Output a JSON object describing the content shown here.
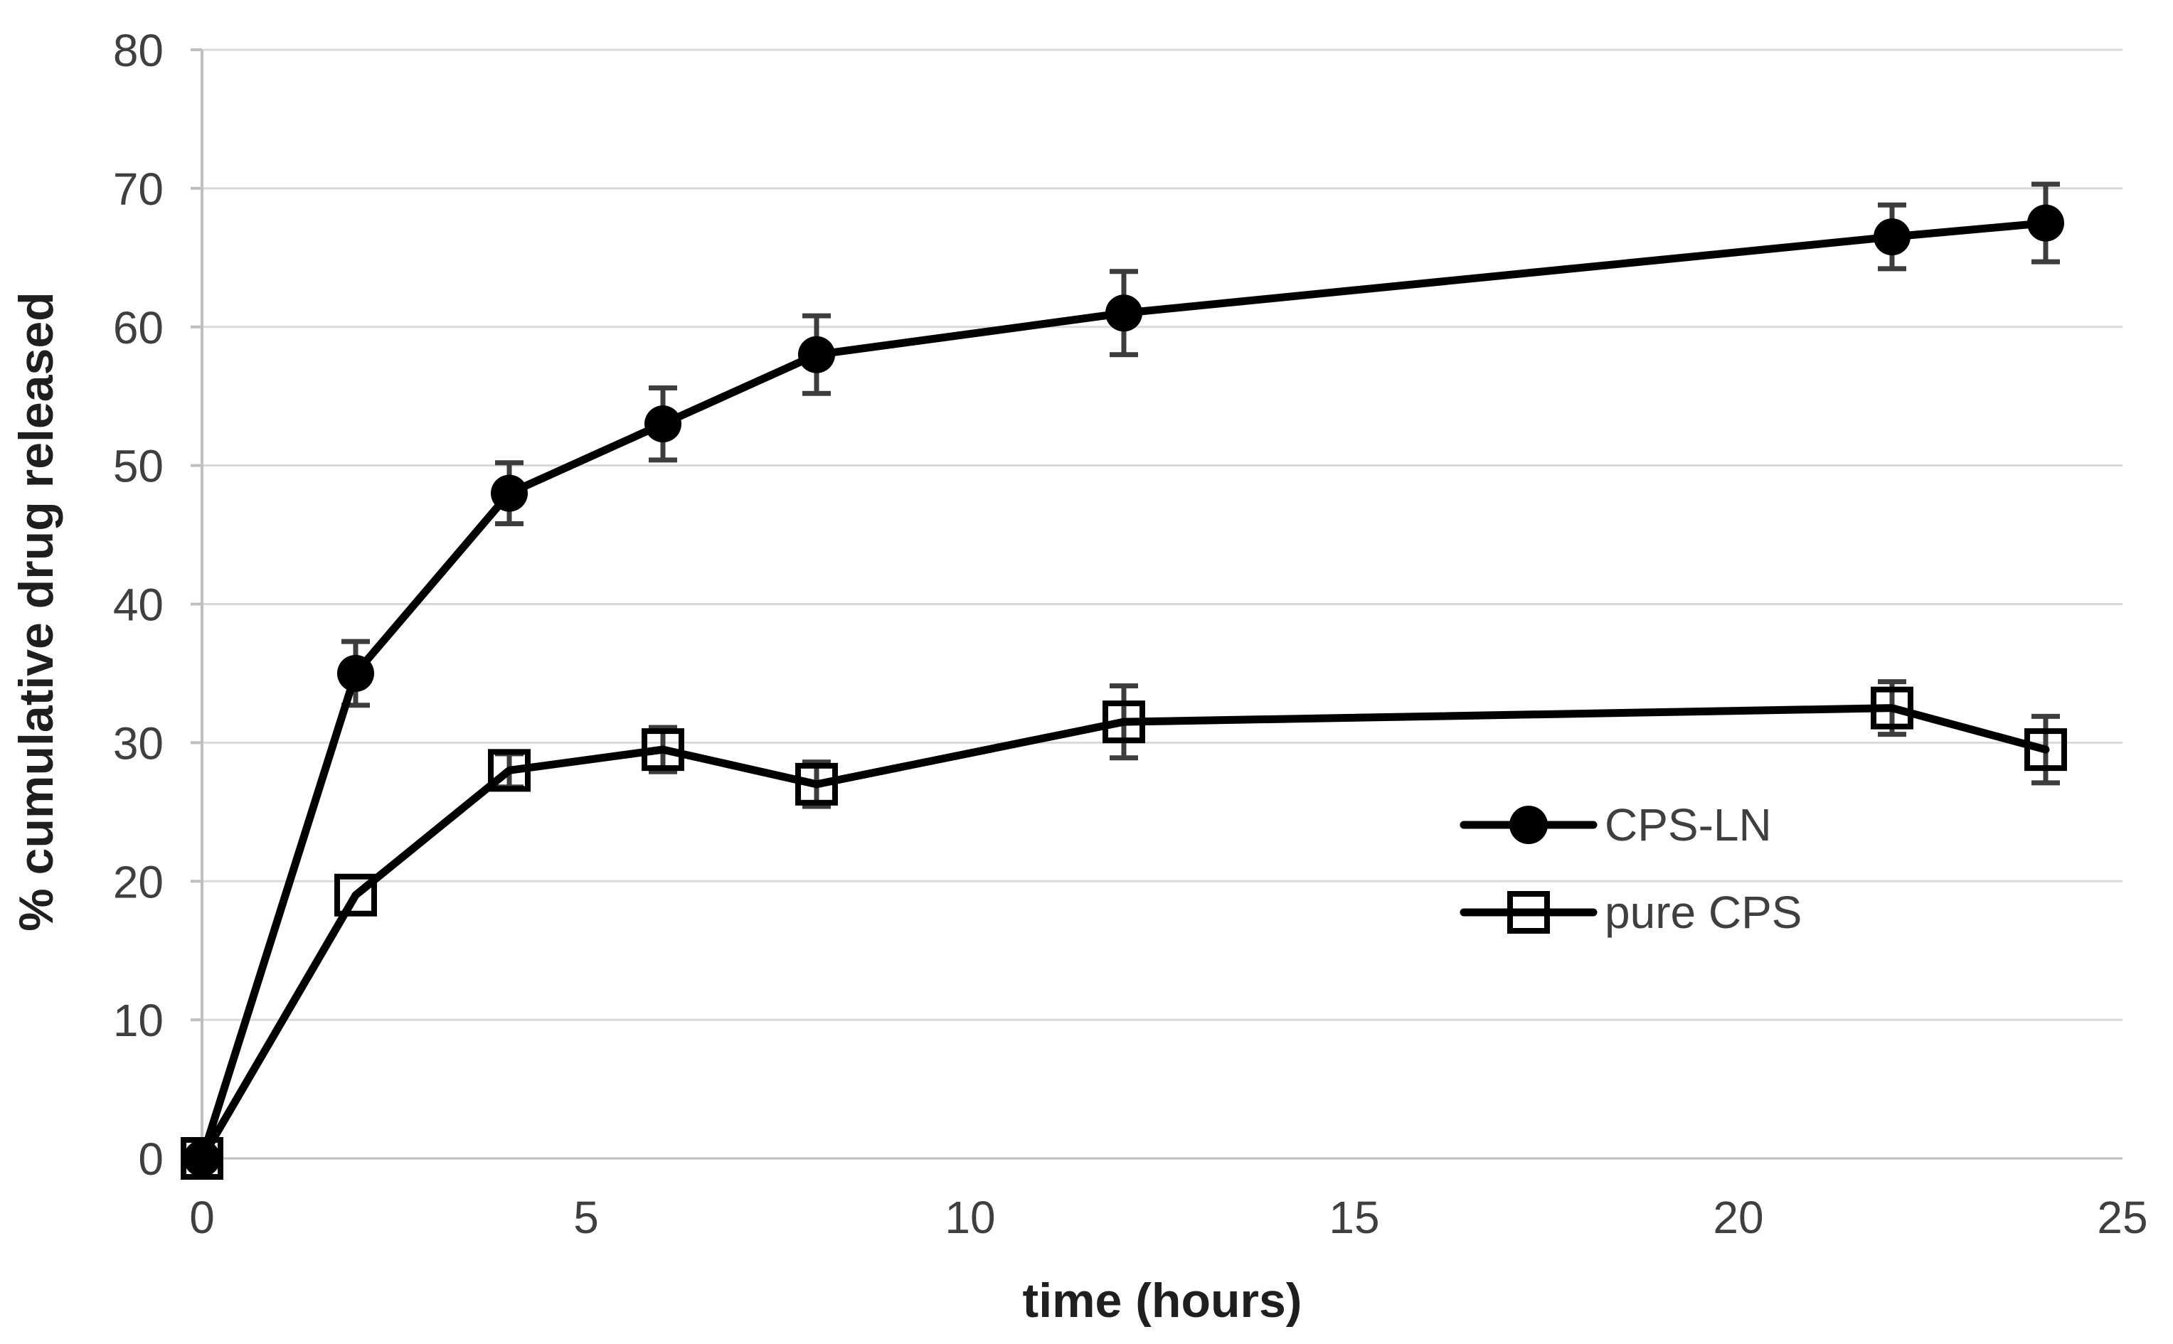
{
  "chart_data": {
    "type": "line",
    "title": "",
    "xlabel": "time (hours)",
    "ylabel": "% cumulative drug released",
    "xlim": [
      0,
      25
    ],
    "ylim": [
      0,
      80
    ],
    "x_ticks": [
      0,
      5,
      10,
      15,
      20,
      25
    ],
    "y_ticks": [
      0,
      10,
      20,
      30,
      40,
      50,
      60,
      70,
      80
    ],
    "grid": "horizontal-gridlines-only",
    "legend_position": "middle-right-inside",
    "background": "#ffffff",
    "colors": {
      "series": "#000000",
      "gridline": "#d9d9d9",
      "axis_line": "#bfbfbf",
      "error_bar": "#3d3d3d",
      "tick_text": "#3f3f3f",
      "title_text": "#1f1f1f"
    },
    "series": [
      {
        "name": "CPS-LN",
        "marker": "filled-circle",
        "color": "#000000",
        "x": [
          0,
          2,
          4,
          6,
          8,
          12,
          22,
          24
        ],
        "y": [
          0,
          35,
          48,
          53,
          58,
          61,
          66.5,
          67.5
        ],
        "yerr": [
          0,
          2.3,
          2.2,
          2.6,
          2.8,
          3,
          2.3,
          2.8
        ]
      },
      {
        "name": "pure CPS",
        "marker": "open-square",
        "color": "#000000",
        "x": [
          0,
          2,
          4,
          6,
          8,
          12,
          22,
          24
        ],
        "y": [
          0,
          19,
          28,
          29.5,
          27,
          31.5,
          32.5,
          29.5
        ],
        "yerr": [
          0,
          0,
          1.2,
          1.6,
          1.6,
          2.6,
          1.9,
          2.4
        ]
      }
    ]
  }
}
